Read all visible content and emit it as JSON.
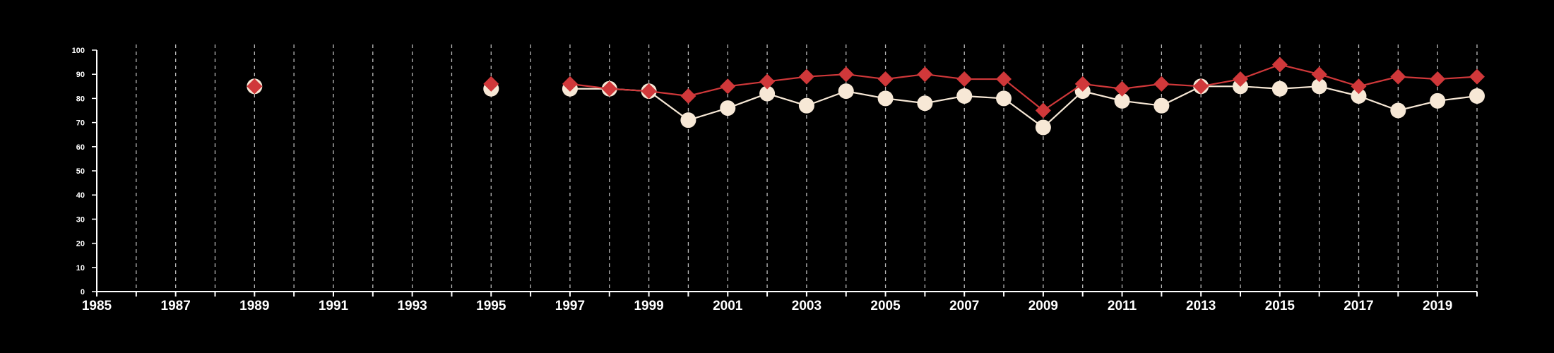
{
  "chart_data": {
    "type": "line",
    "title": "",
    "xlabel": "",
    "ylabel": "",
    "xlim": [
      1985,
      2020
    ],
    "ylim": [
      0,
      100
    ],
    "x_ticks": [
      1985,
      1987,
      1989,
      1991,
      1993,
      1995,
      1997,
      1999,
      2001,
      2003,
      2005,
      2007,
      2009,
      2011,
      2013,
      2015,
      2017,
      2019
    ],
    "y_ticks": [
      0,
      10,
      20,
      30,
      40,
      50,
      60,
      70,
      80,
      90,
      100
    ],
    "grid": "vertical dashed lines at every year",
    "legend": "none",
    "colors": {
      "background": "#000000",
      "axis": "#ffffff",
      "grid": "#bbbbbb",
      "series_light": "#f7e8d6",
      "series_red": "#d0383a"
    },
    "series": [
      {
        "marker": "circle",
        "color": "#f7e8d6",
        "points": [
          [
            1989,
            85
          ],
          [
            1995,
            84
          ],
          [
            1997,
            84
          ],
          [
            1998,
            84
          ],
          [
            1999,
            83
          ],
          [
            2000,
            71
          ],
          [
            2001,
            76
          ],
          [
            2002,
            82
          ],
          [
            2003,
            77
          ],
          [
            2004,
            83
          ],
          [
            2005,
            80
          ],
          [
            2006,
            78
          ],
          [
            2007,
            81
          ],
          [
            2008,
            80
          ],
          [
            2009,
            68
          ],
          [
            2010,
            83
          ],
          [
            2011,
            79
          ],
          [
            2012,
            77
          ],
          [
            2013,
            85
          ],
          [
            2014,
            85
          ],
          [
            2015,
            84
          ],
          [
            2016,
            85
          ],
          [
            2017,
            81
          ],
          [
            2018,
            75
          ],
          [
            2019,
            79
          ],
          [
            2020,
            81
          ]
        ]
      },
      {
        "marker": "diamond",
        "color": "#d0383a",
        "points": [
          [
            1989,
            85
          ],
          [
            1995,
            86
          ],
          [
            1997,
            86
          ],
          [
            1998,
            84
          ],
          [
            1999,
            83
          ],
          [
            2000,
            81
          ],
          [
            2001,
            85
          ],
          [
            2002,
            87
          ],
          [
            2003,
            89
          ],
          [
            2004,
            90
          ],
          [
            2005,
            88
          ],
          [
            2006,
            90
          ],
          [
            2007,
            88
          ],
          [
            2008,
            88
          ],
          [
            2009,
            75
          ],
          [
            2010,
            86
          ],
          [
            2011,
            84
          ],
          [
            2012,
            86
          ],
          [
            2013,
            85
          ],
          [
            2014,
            88
          ],
          [
            2015,
            94
          ],
          [
            2016,
            90
          ],
          [
            2017,
            85
          ],
          [
            2018,
            89
          ],
          [
            2019,
            88
          ],
          [
            2020,
            89
          ]
        ]
      }
    ]
  }
}
